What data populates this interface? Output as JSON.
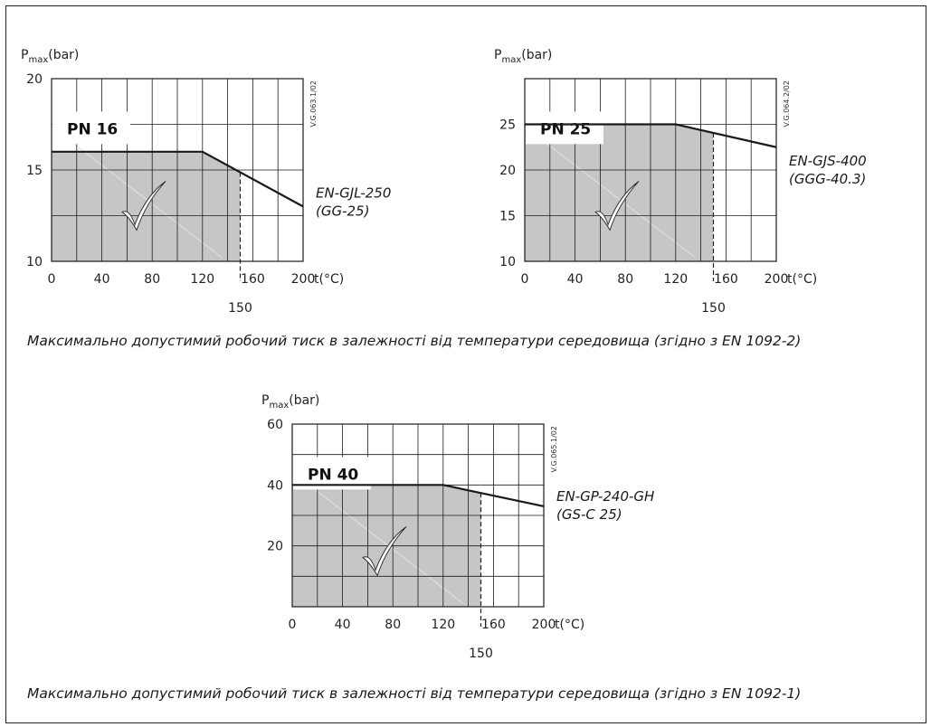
{
  "chart_data": [
    {
      "type": "line",
      "pn_label": "PN 16",
      "ylabel": "P",
      "ylabel_sub": "max",
      "ylabel_unit": "(bar)",
      "xlabel": "t(°C)",
      "code": "V.G.063.1/02",
      "material_lines": [
        "EN-GJL-250",
        "(GG-25)"
      ],
      "xlim": [
        0,
        200
      ],
      "ylim": [
        10,
        20
      ],
      "x_ticks": [
        0,
        40,
        80,
        120,
        160,
        200
      ],
      "y_ticks": [
        10,
        15,
        20
      ],
      "x_grid_step": 20,
      "y_grid_step": 2.5,
      "limit_x": 150,
      "limit_label": "150",
      "series": [
        {
          "x": [
            0,
            120,
            200
          ],
          "y": [
            16,
            16,
            13
          ]
        }
      ]
    },
    {
      "type": "line",
      "pn_label": "PN 25",
      "ylabel": "P",
      "ylabel_sub": "max",
      "ylabel_unit": "(bar)",
      "xlabel": "t(°C)",
      "code": "V.G.064.2/02",
      "material_lines": [
        "EN-GJS-400",
        "(GGG-40.3)"
      ],
      "xlim": [
        0,
        200
      ],
      "ylim": [
        10,
        30
      ],
      "x_ticks": [
        0,
        40,
        80,
        120,
        160,
        200
      ],
      "y_ticks": [
        10,
        15,
        20,
        25
      ],
      "x_grid_step": 20,
      "y_grid_step": 5,
      "limit_x": 150,
      "limit_label": "150",
      "series": [
        {
          "x": [
            0,
            120,
            200
          ],
          "y": [
            25,
            25,
            22.5
          ]
        }
      ]
    },
    {
      "type": "line",
      "pn_label": "PN 40",
      "ylabel": "P",
      "ylabel_sub": "max",
      "ylabel_unit": "(bar)",
      "xlabel": "t(°C)",
      "code": "V.G.065.1/02",
      "material_lines": [
        "EN-GP-240-GH",
        "(GS-C 25)"
      ],
      "xlim": [
        0,
        200
      ],
      "ylim": [
        0,
        60
      ],
      "x_ticks": [
        0,
        40,
        80,
        120,
        160,
        200
      ],
      "y_ticks": [
        20,
        40,
        60
      ],
      "x_grid_step": 20,
      "y_grid_step": 10,
      "limit_x": 150,
      "limit_label": "150",
      "series": [
        {
          "x": [
            0,
            120,
            200
          ],
          "y": [
            40,
            40,
            33
          ]
        }
      ]
    }
  ],
  "captions": {
    "top": "Максимально допустимий робочий тиск в залежності від температури середовища (згідно з EN 1092-2)",
    "bottom": "Максимально допустимий робочий тиск в залежності від температури середовища (згідно з EN 1092-1)"
  },
  "colors": {
    "allowed_fill": "#c6c6c6",
    "line": "#1a1a1a",
    "grid": "#1a1a1a"
  },
  "icons": {
    "allowed_mark": "checkmark-icon"
  }
}
